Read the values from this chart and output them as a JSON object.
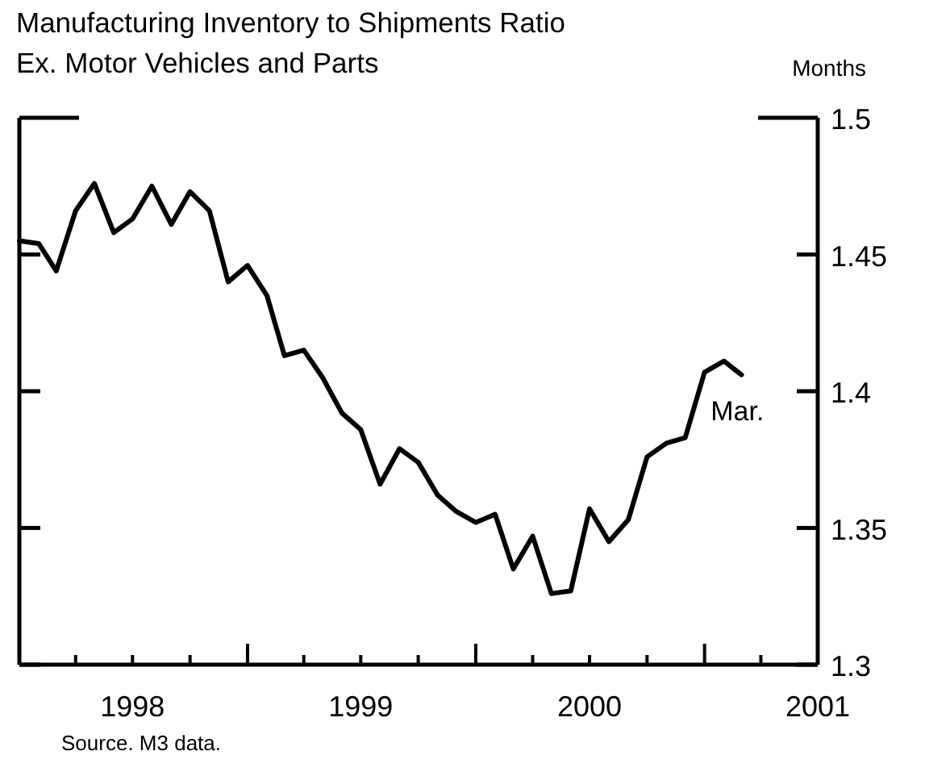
{
  "chart_data": {
    "type": "line",
    "title": "Manufacturing Inventory to Shipments Ratio",
    "subtitle": "Ex. Motor Vehicles and Parts",
    "ylabel": "Months",
    "x": [
      "1998-01",
      "1998-02",
      "1998-03",
      "1998-04",
      "1998-05",
      "1998-06",
      "1998-07",
      "1998-08",
      "1998-09",
      "1998-10",
      "1998-11",
      "1998-12",
      "1999-01",
      "1999-02",
      "1999-03",
      "1999-04",
      "1999-05",
      "1999-06",
      "1999-07",
      "1999-08",
      "1999-09",
      "1999-10",
      "1999-11",
      "1999-12",
      "2000-01",
      "2000-02",
      "2000-03",
      "2000-04",
      "2000-05",
      "2000-06",
      "2000-07",
      "2000-08",
      "2000-09",
      "2000-10",
      "2000-11",
      "2000-12",
      "2001-01",
      "2001-02",
      "2001-03"
    ],
    "series": [
      {
        "color": "#000000",
        "values": [
          1.455,
          1.454,
          1.444,
          1.466,
          1.476,
          1.458,
          1.463,
          1.475,
          1.461,
          1.473,
          1.466,
          1.44,
          1.446,
          1.435,
          1.413,
          1.415,
          1.405,
          1.392,
          1.386,
          1.366,
          1.379,
          1.374,
          1.362,
          1.356,
          1.352,
          1.355,
          1.335,
          1.347,
          1.326,
          1.327,
          1.357,
          1.345,
          1.353,
          1.376,
          1.381,
          1.383,
          1.407,
          1.411,
          1.406
        ]
      }
    ],
    "xlim": [
      "1998-01",
      "2001-07"
    ],
    "xticks": [
      {
        "value": "1998-04",
        "label": null
      },
      {
        "value": "1998-07",
        "label": "1998"
      },
      {
        "value": "1998-10",
        "label": null
      },
      {
        "value": "1999-01",
        "label": null
      },
      {
        "value": "1999-04",
        "label": null
      },
      {
        "value": "1999-07",
        "label": "1999"
      },
      {
        "value": "1999-10",
        "label": null
      },
      {
        "value": "2000-01",
        "label": null
      },
      {
        "value": "2000-04",
        "label": null
      },
      {
        "value": "2000-07",
        "label": "2000"
      },
      {
        "value": "2000-10",
        "label": null
      },
      {
        "value": "2001-01",
        "label": null
      },
      {
        "value": "2001-04",
        "label": null
      },
      {
        "value": "2001-07",
        "label": "2001"
      }
    ],
    "ylim": [
      1.3,
      1.5
    ],
    "yticks": [
      1.3,
      1.35,
      1.4,
      1.45,
      1.5
    ],
    "annotations": [
      {
        "text": "Mar.",
        "x": "2001-03",
        "y": 1.406
      },
      "Source. M3 data."
    ]
  }
}
